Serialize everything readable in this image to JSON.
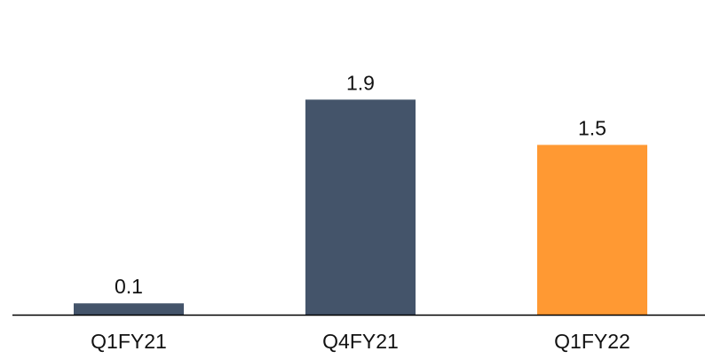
{
  "chart_data": {
    "type": "bar",
    "categories": [
      "Q1FY21",
      "Q4FY21",
      "Q1FY22"
    ],
    "values": [
      0.1,
      1.9,
      1.5
    ],
    "data_labels": [
      "0.1",
      "1.9",
      "1.5"
    ],
    "bar_colors": [
      "#44546a",
      "#44546a",
      "#ff9933"
    ],
    "axis_color": "#000000",
    "ylim": [
      0,
      2.6
    ],
    "grid": false,
    "legend": "none"
  }
}
